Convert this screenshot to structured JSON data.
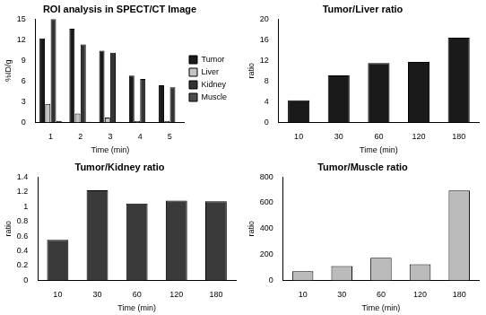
{
  "chart_data": [
    {
      "type": "bar",
      "title": "ROI analysis in SPECT/CT Image",
      "x_label": "Time (min)",
      "y_label": "%ID/g",
      "categories": [
        "1",
        "2",
        "3",
        "4",
        "5"
      ],
      "series": [
        {
          "name": "Tumor",
          "color": "#1a1a1a",
          "values": [
            12.2,
            13.6,
            10.4,
            6.8,
            5.4
          ]
        },
        {
          "name": "Liver",
          "color": "#c4c4c4",
          "values": [
            2.7,
            1.3,
            0.7,
            0.2,
            0.2
          ]
        },
        {
          "name": "Kidney",
          "color": "#333333",
          "values": [
            15.0,
            11.3,
            10.1,
            6.3,
            5.1
          ]
        },
        {
          "name": "Muscle",
          "color": "#4d4d4d",
          "values": [
            0.2,
            0.1,
            0.1,
            0.05,
            0.03
          ]
        }
      ],
      "ylim": [
        0,
        15
      ],
      "yticks": [
        0,
        3,
        6,
        9,
        12,
        15
      ],
      "grid": false,
      "legend": "right"
    },
    {
      "type": "bar",
      "title": "Tumor/Liver ratio",
      "x_label": "Time (min)",
      "y_label": "ratio",
      "categories": [
        "10",
        "30",
        "60",
        "120",
        "180"
      ],
      "values": [
        4.3,
        9.1,
        11.5,
        11.7,
        16.4
      ],
      "color": "#1a1a1a",
      "ylim": [
        0,
        20
      ],
      "yticks": [
        0,
        4,
        8,
        12,
        16,
        20
      ],
      "grid": false
    },
    {
      "type": "bar",
      "title": "Tumor/Kidney ratio",
      "x_label": "Time (min)",
      "y_label": "ratio",
      "categories": [
        "10",
        "30",
        "60",
        "120",
        "180"
      ],
      "values": [
        0.55,
        1.22,
        1.04,
        1.08,
        1.07
      ],
      "color": "#3a3a3a",
      "ylim": [
        0,
        1.4
      ],
      "yticks": [
        0,
        0.2,
        0.4,
        0.6,
        0.8,
        1,
        1.2,
        1.4
      ],
      "grid": false
    },
    {
      "type": "bar",
      "title": "Tumor/Muscle ratio",
      "x_label": "Time (min)",
      "y_label": "ratio",
      "categories": [
        "10",
        "30",
        "60",
        "120",
        "180"
      ],
      "values": [
        70,
        110,
        175,
        125,
        695
      ],
      "color": "#bbbbbb",
      "ylim": [
        0,
        800
      ],
      "yticks": [
        0,
        200,
        400,
        600,
        800
      ],
      "grid": false
    }
  ]
}
